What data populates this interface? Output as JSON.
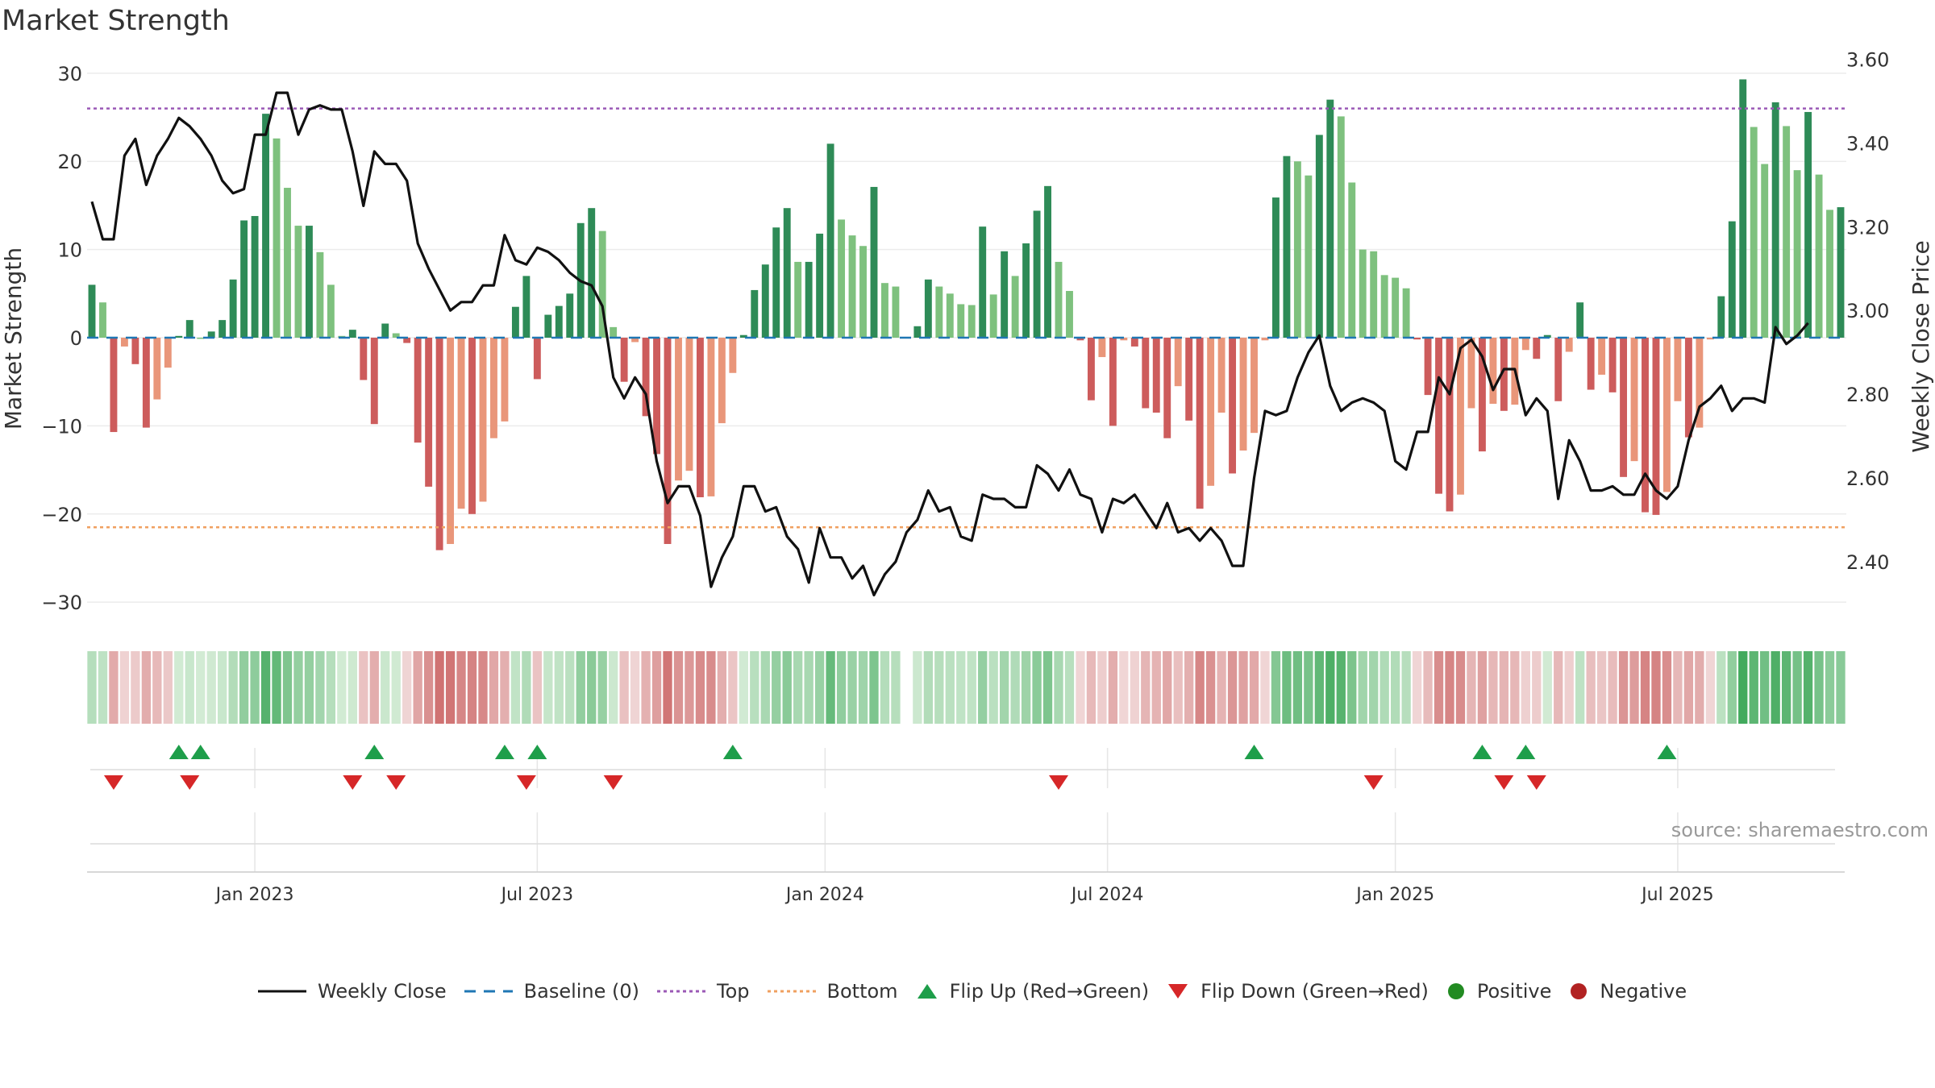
{
  "chart_data": {
    "type": "bar+line",
    "title": "Market Strength",
    "source": "source: sharemaestro.com",
    "left_axis": {
      "label": "Market Strength",
      "range": [
        -33,
        33
      ],
      "ticks": [
        30,
        20,
        10,
        0,
        -10,
        -20,
        -30
      ],
      "tick_labels": [
        "30",
        "20",
        "10",
        "0",
        "−10",
        "−20",
        "−30"
      ]
    },
    "right_axis": {
      "label": "Weekly Close Price",
      "range": [
        2.24,
        3.63
      ],
      "ticks": [
        3.6,
        3.4,
        3.2,
        3.0,
        2.8,
        2.6,
        2.4
      ],
      "tick_labels": [
        "3.60",
        "3.40",
        "3.20",
        "3.00",
        "2.80",
        "2.60",
        "2.40"
      ]
    },
    "x_axis": {
      "ticks": [
        {
          "label": "Jan 2023",
          "week": 15
        },
        {
          "label": "Jul 2023",
          "week": 41
        },
        {
          "label": "Jan 2024",
          "week": 67.5
        },
        {
          "label": "Jul 2024",
          "week": 93.5
        },
        {
          "label": "Jan 2025",
          "week": 120
        },
        {
          "label": "Jul 2025",
          "week": 146
        }
      ]
    },
    "top_level": 26,
    "bottom_level": -21.5,
    "strength": [
      6,
      4,
      -10.7,
      -1,
      -3,
      -10.2,
      -7,
      -3.4,
      0.2,
      2,
      0,
      0.7,
      2,
      6.6,
      13.3,
      13.8,
      25.4,
      22.6,
      17,
      12.7,
      12.7,
      9.7,
      6,
      0.2,
      0.9,
      -4.8,
      -9.8,
      1.6,
      0.5,
      -0.6,
      -11.9,
      -16.9,
      -24.1,
      -23.4,
      -19.4,
      -20,
      -18.6,
      -11.4,
      -9.5,
      3.5,
      7,
      -4.7,
      2.6,
      3.6,
      5,
      13,
      14.7,
      12.1,
      1.2,
      -5,
      -0.5,
      -8.9,
      -13.2,
      -23.4,
      -16.2,
      -15.1,
      -18.1,
      -18,
      -9.7,
      -4,
      0.3,
      5.4,
      8.3,
      12.5,
      14.7,
      8.6,
      8.6,
      11.8,
      22,
      13.4,
      11.6,
      10.4,
      17.1,
      6.2,
      5.8,
      null,
      1.3,
      6.6,
      5.8,
      5,
      3.8,
      3.7,
      12.6,
      4.9,
      9.8,
      7,
      10.7,
      14.4,
      17.2,
      8.6,
      5.3,
      -0.3,
      -7.1,
      -2.2,
      -10,
      -0.3,
      -1,
      -8,
      -8.5,
      -11.4,
      -5.5,
      -9.4,
      -19.4,
      -16.8,
      -8.5,
      -15.4,
      -12.8,
      -10.8,
      -0.3,
      15.9,
      20.6,
      20,
      18.4,
      23,
      27,
      25.1,
      17.6,
      10,
      9.8,
      7.1,
      6.8,
      5.6,
      -0.2,
      -6.5,
      -17.7,
      -19.7,
      -17.8,
      -8,
      -12.9,
      -7.5,
      -8.3,
      -7.6,
      -1.4,
      -2.4,
      0.3,
      -7.2,
      -1.6,
      4,
      -5.9,
      -4.2,
      -6.2,
      -15.8,
      -14,
      -19.8,
      -20.1,
      -17.5,
      -7.2,
      -11.3,
      -10.2,
      -0.2,
      4.7,
      13.2,
      29.3,
      23.9,
      19.7,
      26.7,
      24,
      19,
      25.6,
      18.5,
      14.5,
      14.8
    ],
    "weekly_close": [
      3.26,
      3.17,
      3.17,
      3.37,
      3.41,
      3.3,
      3.37,
      3.41,
      3.46,
      3.44,
      3.41,
      3.37,
      3.31,
      3.28,
      3.29,
      3.42,
      3.42,
      3.52,
      3.52,
      3.42,
      3.48,
      3.49,
      3.48,
      3.48,
      3.38,
      3.25,
      3.38,
      3.35,
      3.35,
      3.31,
      3.16,
      3.1,
      3.05,
      3.0,
      3.02,
      3.02,
      3.06,
      3.06,
      3.18,
      3.12,
      3.11,
      3.15,
      3.14,
      3.12,
      3.09,
      3.07,
      3.06,
      3.01,
      2.84,
      2.79,
      2.84,
      2.8,
      2.64,
      2.54,
      2.58,
      2.58,
      2.51,
      2.34,
      2.41,
      2.46,
      2.58,
      2.58,
      2.52,
      2.53,
      2.46,
      2.43,
      2.35,
      2.48,
      2.41,
      2.41,
      2.36,
      2.39,
      2.32,
      2.37,
      2.4,
      2.47,
      2.5,
      2.57,
      2.52,
      2.53,
      2.46,
      2.45,
      2.56,
      2.55,
      2.55,
      2.53,
      2.53,
      2.63,
      2.61,
      2.57,
      2.62,
      2.56,
      2.55,
      2.47,
      2.55,
      2.54,
      2.56,
      2.52,
      2.48,
      2.54,
      2.47,
      2.48,
      2.45,
      2.48,
      2.45,
      2.39,
      2.39,
      2.6,
      2.76,
      2.75,
      2.76,
      2.84,
      2.9,
      2.94,
      2.82,
      2.76,
      2.78,
      2.79,
      2.78,
      2.76,
      2.64,
      2.62,
      2.71,
      2.71,
      2.84,
      2.8,
      2.91,
      2.93,
      2.89,
      2.81,
      2.86,
      2.86,
      2.75,
      2.79,
      2.76,
      2.55,
      2.69,
      2.64,
      2.57,
      2.57,
      2.58,
      2.56,
      2.56,
      2.61,
      2.57,
      2.55,
      2.58,
      2.69,
      2.77,
      2.79,
      2.82,
      2.76,
      2.79,
      2.79,
      2.78,
      2.96,
      2.92,
      2.94,
      2.97
    ],
    "flip_up_weeks": [
      8,
      10,
      26,
      38,
      41,
      59,
      107,
      128,
      132,
      145
    ],
    "flip_down_weeks": [
      2,
      9,
      24,
      28,
      40,
      48,
      89,
      118,
      130,
      133
    ],
    "colors": {
      "strong_green": "#2e8b57",
      "light_green": "#7ec17e",
      "strong_red": "#cd5c5c",
      "light_red": "#e9967a",
      "top_line": "#9b59b6",
      "bottom_line": "#f0a060",
      "baseline": "#1f77b4",
      "flip_up": "#1e9e4a",
      "flip_down": "#d62728",
      "positive": "#228b22",
      "negative": "#b22222"
    },
    "legend": [
      "Weekly Close",
      "Baseline (0)",
      "Top",
      "Bottom",
      "Flip Up (Red→Green)",
      "Flip Down (Green→Red)",
      "Positive",
      "Negative"
    ]
  }
}
